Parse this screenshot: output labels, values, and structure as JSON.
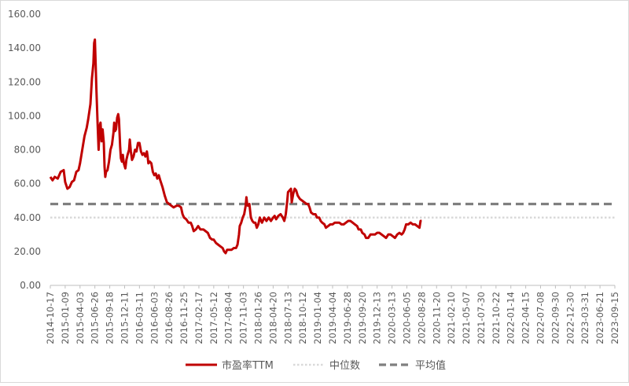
{
  "chart_data": {
    "type": "line",
    "title": "",
    "xlabel": "",
    "ylabel": "",
    "ylim": [
      0,
      160
    ],
    "yticks": [
      "0.00",
      "20.00",
      "40.00",
      "60.00",
      "80.00",
      "100.00",
      "120.00",
      "140.00",
      "160.00"
    ],
    "grid": false,
    "legend_position": "bottom",
    "xtick_labels": [
      "2014-10-17",
      "2015-01-09",
      "2015-04-03",
      "2015-06-26",
      "2015-09-18",
      "2015-12-11",
      "2016-03-11",
      "2016-06-03",
      "2016-08-26",
      "2016-11-25",
      "2017-02-17",
      "2017-05-12",
      "2017-08-04",
      "2017-11-03",
      "2018-01-26",
      "2018-04-20",
      "2018-07-13",
      "2018-10-12",
      "2019-01-04",
      "2019-04-04",
      "2019-06-28",
      "2019-09-20",
      "2019-12-13",
      "2020-03-13",
      "2020-06-05",
      "2020-08-28",
      "2020-11-20",
      "2021-02-10",
      "2021-05-07",
      "2021-07-30",
      "2021-10-22",
      "2022-01-14",
      "2022-04-15",
      "2022-07-08",
      "2022-09-30",
      "2022-12-30",
      "2023-03-31",
      "2023-06-21",
      "2023-09-15"
    ],
    "series": [
      {
        "name": "市盈率TTM",
        "color": "#c00000",
        "style": "solid",
        "points": [
          [
            0,
            64
          ],
          [
            0.15,
            62
          ],
          [
            0.3,
            64
          ],
          [
            0.5,
            63
          ],
          [
            0.7,
            67
          ],
          [
            0.9,
            68
          ],
          [
            1.0,
            61
          ],
          [
            1.15,
            57
          ],
          [
            1.3,
            58
          ],
          [
            1.45,
            61
          ],
          [
            1.6,
            62
          ],
          [
            1.75,
            67
          ],
          [
            1.9,
            68
          ],
          [
            2.0,
            72
          ],
          [
            2.15,
            80
          ],
          [
            2.3,
            88
          ],
          [
            2.45,
            93
          ],
          [
            2.55,
            98
          ],
          [
            2.7,
            107
          ],
          [
            2.8,
            122
          ],
          [
            2.9,
            131
          ],
          [
            2.95,
            143
          ],
          [
            3.0,
            145
          ],
          [
            3.05,
            131
          ],
          [
            3.1,
            116
          ],
          [
            3.18,
            96
          ],
          [
            3.25,
            80
          ],
          [
            3.32,
            94
          ],
          [
            3.38,
            96
          ],
          [
            3.45,
            85
          ],
          [
            3.52,
            92
          ],
          [
            3.6,
            84
          ],
          [
            3.65,
            70
          ],
          [
            3.7,
            64
          ],
          [
            3.75,
            67
          ],
          [
            3.85,
            68
          ],
          [
            3.95,
            73
          ],
          [
            4.05,
            80
          ],
          [
            4.15,
            83
          ],
          [
            4.25,
            90
          ],
          [
            4.3,
            96
          ],
          [
            4.35,
            91
          ],
          [
            4.42,
            92
          ],
          [
            4.5,
            99
          ],
          [
            4.57,
            101
          ],
          [
            4.62,
            98
          ],
          [
            4.7,
            82
          ],
          [
            4.75,
            75
          ],
          [
            4.82,
            73
          ],
          [
            4.88,
            77
          ],
          [
            4.95,
            72
          ],
          [
            5.05,
            69
          ],
          [
            5.12,
            74
          ],
          [
            5.2,
            77
          ],
          [
            5.3,
            80
          ],
          [
            5.35,
            86
          ],
          [
            5.42,
            79
          ],
          [
            5.5,
            74
          ],
          [
            5.6,
            76
          ],
          [
            5.7,
            80
          ],
          [
            5.8,
            79
          ],
          [
            5.9,
            84
          ],
          [
            6.0,
            84
          ],
          [
            6.1,
            79
          ],
          [
            6.2,
            77
          ],
          [
            6.3,
            78
          ],
          [
            6.4,
            76
          ],
          [
            6.5,
            79
          ],
          [
            6.55,
            76
          ],
          [
            6.6,
            72
          ],
          [
            6.7,
            73
          ],
          [
            6.8,
            72
          ],
          [
            6.9,
            67
          ],
          [
            7.0,
            65
          ],
          [
            7.1,
            66
          ],
          [
            7.2,
            63
          ],
          [
            7.3,
            65
          ],
          [
            7.4,
            62
          ],
          [
            7.55,
            58
          ],
          [
            7.7,
            53
          ],
          [
            7.85,
            49
          ],
          [
            8.0,
            48
          ],
          [
            8.15,
            47
          ],
          [
            8.3,
            46
          ],
          [
            8.5,
            47
          ],
          [
            8.65,
            47
          ],
          [
            8.8,
            46
          ],
          [
            8.9,
            42
          ],
          [
            9.0,
            40
          ],
          [
            9.15,
            39
          ],
          [
            9.3,
            37
          ],
          [
            9.45,
            37
          ],
          [
            9.55,
            35
          ],
          [
            9.65,
            32
          ],
          [
            9.8,
            33
          ],
          [
            9.95,
            35
          ],
          [
            10.1,
            33
          ],
          [
            10.3,
            33
          ],
          [
            10.45,
            32
          ],
          [
            10.6,
            31
          ],
          [
            10.75,
            28
          ],
          [
            10.9,
            27
          ],
          [
            11.0,
            27
          ],
          [
            11.15,
            25
          ],
          [
            11.3,
            24
          ],
          [
            11.45,
            23
          ],
          [
            11.6,
            22
          ],
          [
            11.7,
            20
          ],
          [
            11.8,
            19
          ],
          [
            11.9,
            21
          ],
          [
            12.05,
            21
          ],
          [
            12.2,
            21
          ],
          [
            12.35,
            22
          ],
          [
            12.5,
            22
          ],
          [
            12.6,
            24
          ],
          [
            12.7,
            30
          ],
          [
            12.75,
            35
          ],
          [
            12.85,
            37
          ],
          [
            12.95,
            40
          ],
          [
            13.05,
            42
          ],
          [
            13.15,
            47
          ],
          [
            13.2,
            52
          ],
          [
            13.25,
            48
          ],
          [
            13.3,
            47
          ],
          [
            13.4,
            48
          ],
          [
            13.5,
            40
          ],
          [
            13.6,
            38
          ],
          [
            13.7,
            37
          ],
          [
            13.8,
            37
          ],
          [
            13.9,
            34
          ],
          [
            14.0,
            36
          ],
          [
            14.1,
            40
          ],
          [
            14.25,
            37
          ],
          [
            14.4,
            40
          ],
          [
            14.55,
            38
          ],
          [
            14.7,
            40
          ],
          [
            14.85,
            38
          ],
          [
            15.0,
            40
          ],
          [
            15.1,
            41
          ],
          [
            15.2,
            39
          ],
          [
            15.35,
            41
          ],
          [
            15.5,
            42
          ],
          [
            15.65,
            40
          ],
          [
            15.75,
            38
          ],
          [
            15.85,
            42
          ],
          [
            15.95,
            50
          ],
          [
            16.0,
            55
          ],
          [
            16.1,
            56
          ],
          [
            16.2,
            57
          ],
          [
            16.25,
            49
          ],
          [
            16.35,
            54
          ],
          [
            16.45,
            57
          ],
          [
            16.55,
            56
          ],
          [
            16.65,
            53
          ],
          [
            16.8,
            51
          ],
          [
            16.95,
            50
          ],
          [
            17.1,
            49
          ],
          [
            17.25,
            48
          ],
          [
            17.35,
            48
          ],
          [
            17.45,
            46
          ],
          [
            17.55,
            43
          ],
          [
            17.7,
            42
          ],
          [
            17.85,
            42
          ],
          [
            17.95,
            40
          ],
          [
            18.1,
            40
          ],
          [
            18.2,
            38
          ],
          [
            18.3,
            37
          ],
          [
            18.45,
            36
          ],
          [
            18.55,
            34
          ],
          [
            18.7,
            35
          ],
          [
            18.85,
            36
          ],
          [
            19.0,
            36
          ],
          [
            19.15,
            37
          ],
          [
            19.3,
            37
          ],
          [
            19.45,
            37
          ],
          [
            19.6,
            36
          ],
          [
            19.75,
            36
          ],
          [
            19.9,
            37
          ],
          [
            20.05,
            38
          ],
          [
            20.2,
            38
          ],
          [
            20.35,
            37
          ],
          [
            20.5,
            36
          ],
          [
            20.65,
            35
          ],
          [
            20.75,
            33
          ],
          [
            20.9,
            33
          ],
          [
            21.0,
            31
          ],
          [
            21.15,
            30
          ],
          [
            21.25,
            28
          ],
          [
            21.4,
            28
          ],
          [
            21.55,
            30
          ],
          [
            21.7,
            30
          ],
          [
            21.85,
            30
          ],
          [
            22.0,
            31
          ],
          [
            22.15,
            31
          ],
          [
            22.3,
            30
          ],
          [
            22.45,
            29
          ],
          [
            22.6,
            28
          ],
          [
            22.75,
            30
          ],
          [
            22.9,
            30
          ],
          [
            23.05,
            29
          ],
          [
            23.2,
            28
          ],
          [
            23.35,
            30
          ],
          [
            23.5,
            31
          ],
          [
            23.65,
            30
          ],
          [
            23.75,
            31
          ],
          [
            23.85,
            33
          ],
          [
            23.95,
            36
          ],
          [
            24.1,
            36
          ],
          [
            24.25,
            37
          ],
          [
            24.4,
            36
          ],
          [
            24.55,
            36
          ],
          [
            24.7,
            35
          ],
          [
            24.85,
            34
          ],
          [
            24.92,
            38
          ],
          [
            25.0,
            38
          ]
        ]
      },
      {
        "name": "中位数",
        "color": "#d9d9d9",
        "style": "dotted",
        "constant": 40
      },
      {
        "name": "平均值",
        "color": "#7f7f7f",
        "style": "dashed",
        "constant": 48
      }
    ]
  }
}
